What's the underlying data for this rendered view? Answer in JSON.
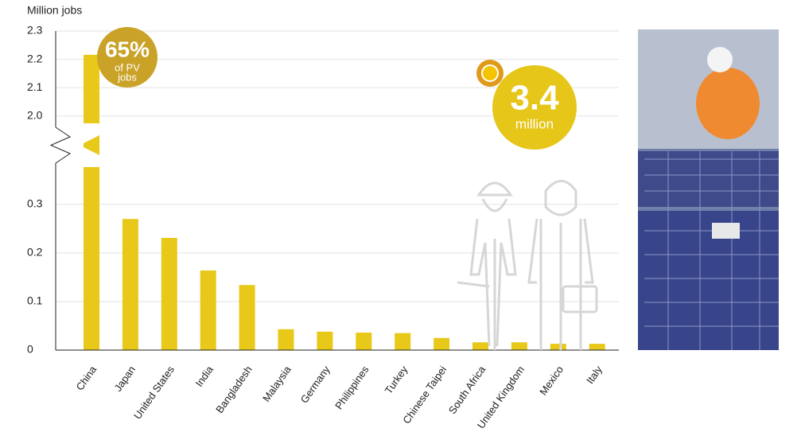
{
  "chart_data": {
    "type": "bar",
    "y_axis_label": "Million jobs",
    "categories": [
      "China",
      "Japan",
      "United States",
      "India",
      "Bangladesh",
      "Malaysia",
      "Germany",
      "Philippines",
      "Turkey",
      "Chinese Taipei",
      "South Africa",
      "United Kingdom",
      "Mexico",
      "Italy"
    ],
    "values": [
      2.216,
      0.27,
      0.231,
      0.164,
      0.134,
      0.043,
      0.038,
      0.036,
      0.035,
      0.025,
      0.016,
      0.016,
      0.013,
      0.013
    ],
    "color": "#e8c91a",
    "ylim": [
      0,
      2.3
    ],
    "axis_break": [
      0.385,
      1.96
    ],
    "yticks": [
      0,
      0.1,
      0.2,
      0.3,
      {
        "value": 2,
        "label": "2.0"
      },
      2.1,
      2.2,
      2.3
    ],
    "grid": true,
    "annotations": {
      "share": [
        "65%",
        "of PV",
        "jobs"
      ],
      "total": [
        "3.4",
        "million"
      ]
    }
  }
}
